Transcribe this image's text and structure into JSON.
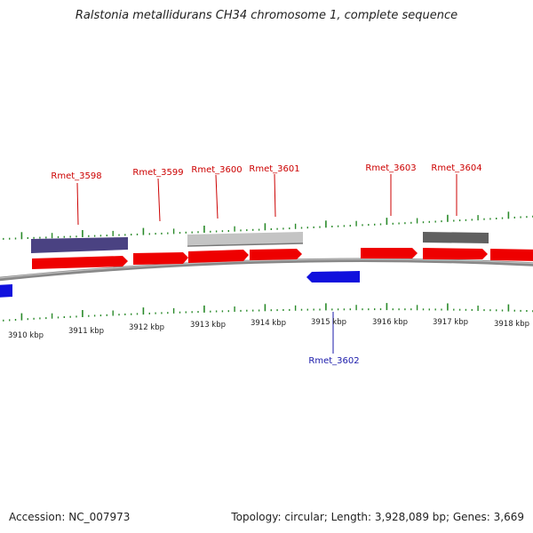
{
  "title": "Ralstonia metallidurans CH34 chromosome 1, complete sequence",
  "footer": {
    "accession": "Accession: NC_007973",
    "summary": "Topology: circular; Length: 3,928,089 bp; Genes: 3,669"
  },
  "colors": {
    "forward_gene": "#ee0000",
    "reverse_gene": "#1010dd",
    "forward_label": "#cc0000",
    "reverse_label": "#1a1aaa",
    "tick": "#2a8a2a",
    "backbone": "#8a8a8a",
    "feature_purple": "#4a4282",
    "feature_lightgray": "#c4c4c4",
    "feature_darkgray": "#606060"
  },
  "axis_labels": [
    "3910 kbp",
    "3911 kbp",
    "3912 kbp",
    "3913 kbp",
    "3914 kbp",
    "3915 kbp",
    "3916 kbp",
    "3917 kbp",
    "3918 kbp"
  ],
  "gene_labels": {
    "rmet_3598": "Rmet_3598",
    "rmet_3599": "Rmet_3599",
    "rmet_3600": "Rmet_3600",
    "rmet_3601": "Rmet_3601",
    "rmet_3602": "Rmet_3602",
    "rmet_3603": "Rmet_3603",
    "rmet_3604": "Rmet_3604"
  }
}
